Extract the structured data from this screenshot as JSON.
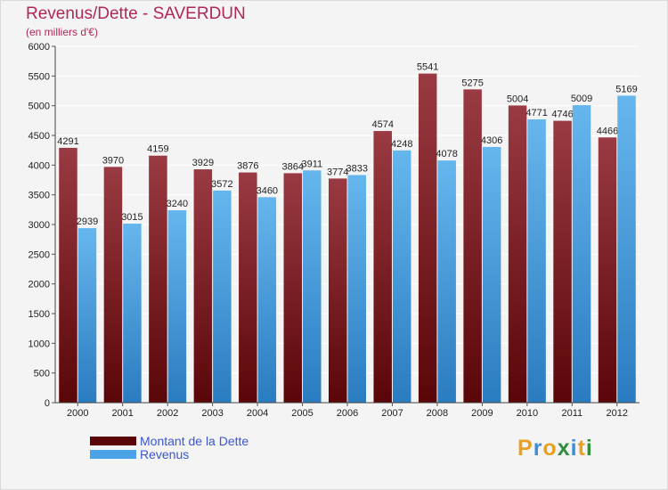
{
  "chart_data": {
    "type": "bar",
    "title": "Revenus/Dette - SAVERDUN",
    "subtitle": "(en milliers d'€)",
    "xlabel": "",
    "ylabel": "",
    "categories": [
      "2000",
      "2001",
      "2002",
      "2003",
      "2004",
      "2005",
      "2006",
      "2007",
      "2008",
      "2009",
      "2010",
      "2011",
      "2012"
    ],
    "series": [
      {
        "name": "Montant de la Dette",
        "color": "#7a1a22",
        "values": [
          4291,
          3970,
          4159,
          3929,
          3876,
          3864,
          3774,
          4574,
          5541,
          5275,
          5004,
          4746,
          4466
        ]
      },
      {
        "name": "Revenus",
        "color": "#4aa3e6",
        "values": [
          2939,
          3015,
          3240,
          3572,
          3460,
          3911,
          3833,
          4248,
          4078,
          4306,
          4771,
          5009,
          5169
        ]
      }
    ],
    "ylim": [
      0,
      6000
    ],
    "yticks": [
      0,
      500,
      1000,
      1500,
      2000,
      2500,
      3000,
      3500,
      4000,
      4500,
      5000,
      5500,
      6000
    ],
    "grid": true,
    "legend_position": "bottom-left"
  },
  "logo": {
    "letters": [
      "P",
      "r",
      "o",
      "x",
      "i",
      "t",
      "i"
    ],
    "colors": [
      "#e8a020",
      "#3a8fd6",
      "#e8a020",
      "#2f8f3a",
      "#3a8fd6",
      "#e8a020",
      "#2f8f3a"
    ]
  }
}
